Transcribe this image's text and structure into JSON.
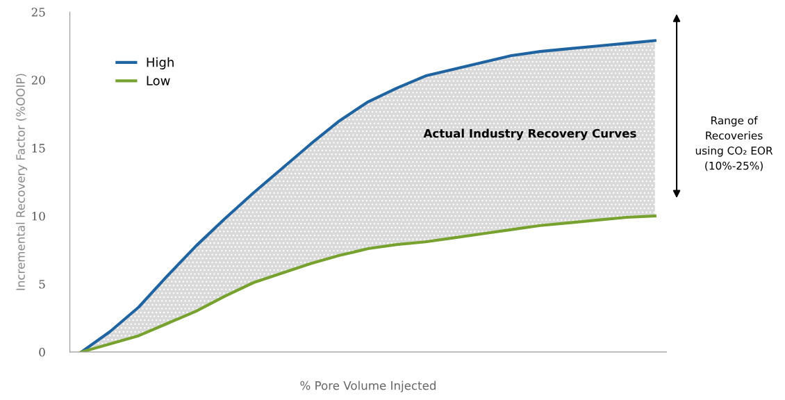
{
  "chart_data": {
    "type": "line",
    "xlabel": "% Pore Volume Injected",
    "ylabel": "Incremental Recovery Factor (%OOIP)",
    "categories": [
      null,
      null,
      null,
      null,
      null,
      null,
      null,
      null,
      null,
      null,
      null,
      null,
      null,
      null,
      null,
      null,
      null,
      null,
      null,
      null,
      null
    ],
    "series": [
      {
        "name": "High",
        "color": "#1f64a0",
        "values": [
          0,
          1.5,
          3.3,
          5.6,
          7.8,
          9.8,
          11.7,
          13.5,
          15.3,
          17.0,
          18.4,
          19.4,
          20.3,
          20.8,
          21.3,
          21.8,
          22.1,
          22.3,
          22.5,
          22.7,
          22.9
        ],
        "lower": [
          0,
          0.6,
          1.2,
          2.1,
          3.0,
          4.1,
          5.1,
          5.8,
          6.5,
          7.1,
          7.6,
          7.9,
          8.1,
          8.4,
          8.7,
          9.0,
          9.3,
          9.5,
          9.7,
          9.9,
          10.0
        ],
        "upper": [
          0,
          1.5,
          3.3,
          5.6,
          7.8,
          9.8,
          11.7,
          13.5,
          15.3,
          17.0,
          18.4,
          19.4,
          20.3,
          20.8,
          21.3,
          21.8,
          22.1,
          22.3,
          22.5,
          22.7,
          22.9
        ]
      },
      {
        "name": "Low",
        "color": "#78a22f",
        "values": [
          0,
          0.6,
          1.2,
          2.1,
          3.0,
          4.1,
          5.1,
          5.8,
          6.5,
          7.1,
          7.6,
          7.9,
          8.1,
          8.4,
          8.7,
          9.0,
          9.3,
          9.5,
          9.7,
          9.9,
          10.0
        ]
      }
    ],
    "ylim": [
      0,
      25
    ],
    "yticks": [
      0,
      5,
      10,
      15,
      20,
      25
    ],
    "tick_labels": "y",
    "grid": false,
    "legend": "top left",
    "marker": "none",
    "line_style": "solid",
    "annotations": [
      "Actual Industry Recovery Curves",
      "Range of\nRecoveries\nusing CO₂ EOR\n(10%-25%)"
    ]
  }
}
